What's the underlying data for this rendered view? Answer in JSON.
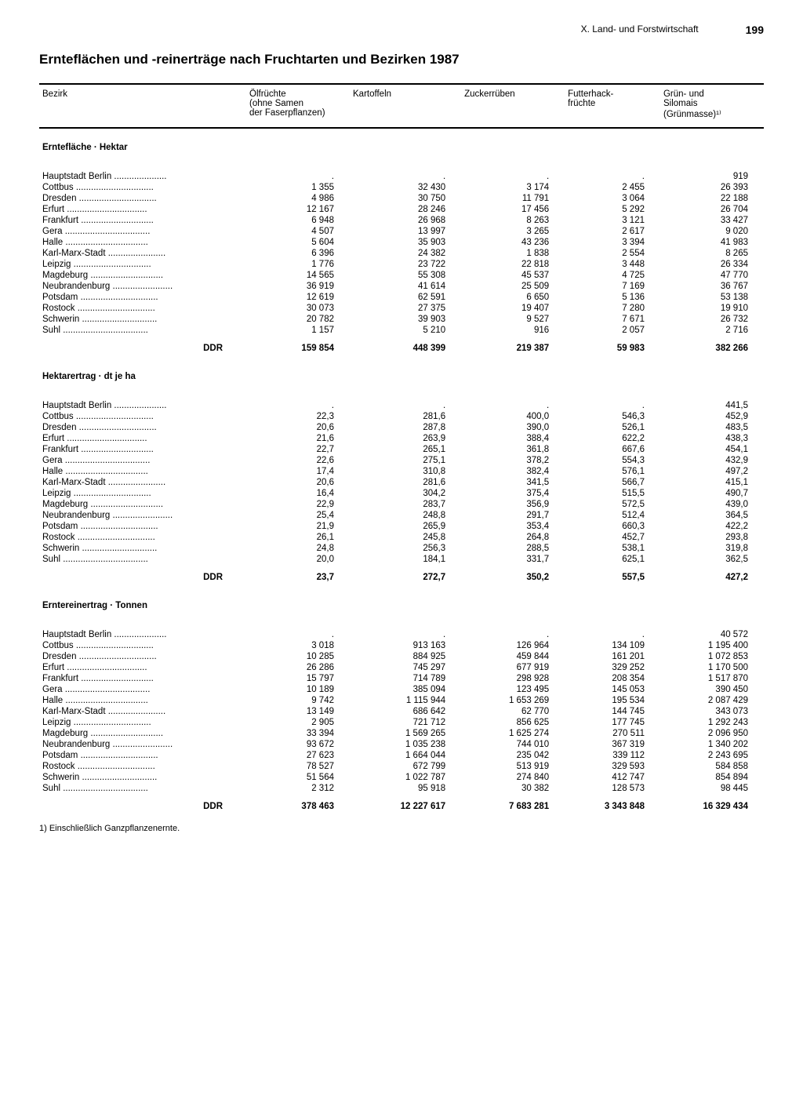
{
  "header": {
    "chapter": "X. Land- und Forstwirtschaft",
    "page": "199"
  },
  "title": "Ernteflächen und -reinerträge nach Fruchtarten und Bezirken 1987",
  "columns": [
    "Bezirk",
    "Ölfrüchte\n(ohne Samen\nder Faserpflanzen)",
    "Kartoffeln",
    "Zuckerrüben",
    "Futterhack-\nfrüchte",
    "Grün- und\nSilomais\n(Grünmasse)¹⁾"
  ],
  "districts": [
    "Hauptstadt Berlin",
    "Cottbus",
    "Dresden",
    "Erfurt",
    "Frankfurt",
    "Gera",
    "Halle",
    "Karl-Marx-Stadt",
    "Leipzig",
    "Magdeburg",
    "Neubrandenburg",
    "Potsdam",
    "Rostock",
    "Schwerin",
    "Suhl"
  ],
  "total_label": "DDR",
  "sections": [
    {
      "title": "Erntefläche · Hektar",
      "rows": [
        [
          ".",
          ".",
          ".",
          ".",
          "919"
        ],
        [
          "1 355",
          "32 430",
          "3 174",
          "2 455",
          "26 393"
        ],
        [
          "4 986",
          "30 750",
          "11 791",
          "3 064",
          "22 188"
        ],
        [
          "12 167",
          "28 246",
          "17 456",
          "5 292",
          "26 704"
        ],
        [
          "6 948",
          "26 968",
          "8 263",
          "3 121",
          "33 427"
        ],
        [
          "4 507",
          "13 997",
          "3 265",
          "2 617",
          "9 020"
        ],
        [
          "5 604",
          "35 903",
          "43 236",
          "3 394",
          "41 983"
        ],
        [
          "6 396",
          "24 382",
          "1 838",
          "2 554",
          "8 265"
        ],
        [
          "1 776",
          "23 722",
          "22 818",
          "3 448",
          "26 334"
        ],
        [
          "14 565",
          "55 308",
          "45 537",
          "4 725",
          "47 770"
        ],
        [
          "36 919",
          "41 614",
          "25 509",
          "7 169",
          "36 767"
        ],
        [
          "12 619",
          "62 591",
          "6 650",
          "5 136",
          "53 138"
        ],
        [
          "30 073",
          "27 375",
          "19 407",
          "7 280",
          "19 910"
        ],
        [
          "20 782",
          "39 903",
          "9 527",
          "7 671",
          "26 732"
        ],
        [
          "1 157",
          "5 210",
          "916",
          "2 057",
          "2 716"
        ]
      ],
      "total": [
        "159 854",
        "448 399",
        "219 387",
        "59 983",
        "382 266"
      ]
    },
    {
      "title": "Hektarertrag · dt je ha",
      "rows": [
        [
          ".",
          ".",
          ".",
          ".",
          "441,5"
        ],
        [
          "22,3",
          "281,6",
          "400,0",
          "546,3",
          "452,9"
        ],
        [
          "20,6",
          "287,8",
          "390,0",
          "526,1",
          "483,5"
        ],
        [
          "21,6",
          "263,9",
          "388,4",
          "622,2",
          "438,3"
        ],
        [
          "22,7",
          "265,1",
          "361,8",
          "667,6",
          "454,1"
        ],
        [
          "22,6",
          "275,1",
          "378,2",
          "554,3",
          "432,9"
        ],
        [
          "17,4",
          "310,8",
          "382,4",
          "576,1",
          "497,2"
        ],
        [
          "20,6",
          "281,6",
          "341,5",
          "566,7",
          "415,1"
        ],
        [
          "16,4",
          "304,2",
          "375,4",
          "515,5",
          "490,7"
        ],
        [
          "22,9",
          "283,7",
          "356,9",
          "572,5",
          "439,0"
        ],
        [
          "25,4",
          "248,8",
          "291,7",
          "512,4",
          "364,5"
        ],
        [
          "21,9",
          "265,9",
          "353,4",
          "660,3",
          "422,2"
        ],
        [
          "26,1",
          "245,8",
          "264,8",
          "452,7",
          "293,8"
        ],
        [
          "24,8",
          "256,3",
          "288,5",
          "538,1",
          "319,8"
        ],
        [
          "20,0",
          "184,1",
          "331,7",
          "625,1",
          "362,5"
        ]
      ],
      "total": [
        "23,7",
        "272,7",
        "350,2",
        "557,5",
        "427,2"
      ]
    },
    {
      "title": "Erntereinertrag · Tonnen",
      "rows": [
        [
          ".",
          ".",
          ".",
          ".",
          "40 572"
        ],
        [
          "3 018",
          "913 163",
          "126 964",
          "134 109",
          "1 195 400"
        ],
        [
          "10 285",
          "884 925",
          "459 844",
          "161 201",
          "1 072 853"
        ],
        [
          "26 286",
          "745 297",
          "677 919",
          "329 252",
          "1 170 500"
        ],
        [
          "15 797",
          "714 789",
          "298 928",
          "208 354",
          "1 517 870"
        ],
        [
          "10 189",
          "385 094",
          "123 495",
          "145 053",
          "390 450"
        ],
        [
          "9 742",
          "1 115 944",
          "1 653 269",
          "195 534",
          "2 087 429"
        ],
        [
          "13 149",
          "686 642",
          "62 770",
          "144 745",
          "343 073"
        ],
        [
          "2 905",
          "721 712",
          "856 625",
          "177 745",
          "1 292 243"
        ],
        [
          "33 394",
          "1 569 265",
          "1 625 274",
          "270 511",
          "2 096 950"
        ],
        [
          "93 672",
          "1 035 238",
          "744 010",
          "367 319",
          "1 340 202"
        ],
        [
          "27 623",
          "1 664 044",
          "235 042",
          "339 112",
          "2 243 695"
        ],
        [
          "78 527",
          "672 799",
          "513 919",
          "329 593",
          "584 858"
        ],
        [
          "51 564",
          "1 022 787",
          "274 840",
          "412 747",
          "854 894"
        ],
        [
          "2 312",
          "95 918",
          "30 382",
          "128 573",
          "98 445"
        ]
      ],
      "total": [
        "378 463",
        "12 227 617",
        "7 683 281",
        "3 343 848",
        "16 329 434"
      ]
    }
  ],
  "footnote": "1) Einschließlich Ganzpflanzenernte."
}
